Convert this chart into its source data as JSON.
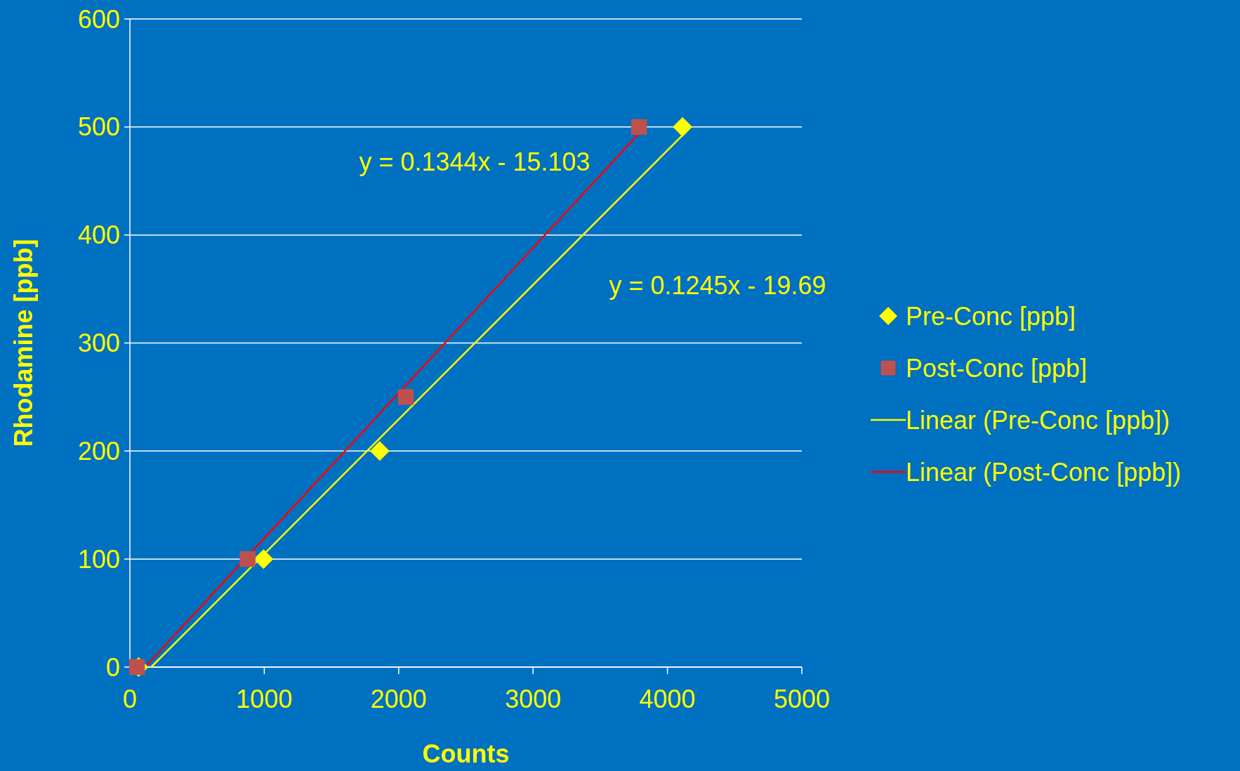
{
  "chart_data": {
    "type": "scatter",
    "xlabel": "Counts",
    "ylabel": "Rhodamine [ppb]",
    "xlim": [
      0,
      5000
    ],
    "xticks": [
      0,
      1000,
      2000,
      3000,
      4000,
      5000
    ],
    "ylim": [
      0,
      600
    ],
    "yticks": [
      0,
      100,
      200,
      300,
      400,
      500,
      600
    ],
    "grid": "y",
    "legend": "right",
    "series": [
      {
        "name": "Pre-Conc [ppb]",
        "color": "#ffff00",
        "marker": "diamond",
        "x": [
          65,
          994,
          1859,
          4112
        ],
        "values": [
          0,
          100,
          200,
          500
        ]
      },
      {
        "name": "Post-Conc [ppb]",
        "color": "#c0504d",
        "marker": "square",
        "x": [
          53,
          876,
          2053,
          3788
        ],
        "values": [
          0,
          100,
          250,
          500
        ]
      },
      {
        "name": "Linear (Pre-Conc [ppb])",
        "type": "line",
        "color": "#ffff00",
        "x": [
          158,
          4112
        ],
        "values": [
          0,
          492.3
        ]
      },
      {
        "name": "Linear (Post-Conc [ppb])",
        "type": "line",
        "color": "#ff0000",
        "x": [
          112,
          3788
        ],
        "values": [
          0,
          494
        ]
      }
    ],
    "annotations": [
      "y = 0.1344x - 15.103",
      "y = 0.1245x - 19.69"
    ]
  }
}
